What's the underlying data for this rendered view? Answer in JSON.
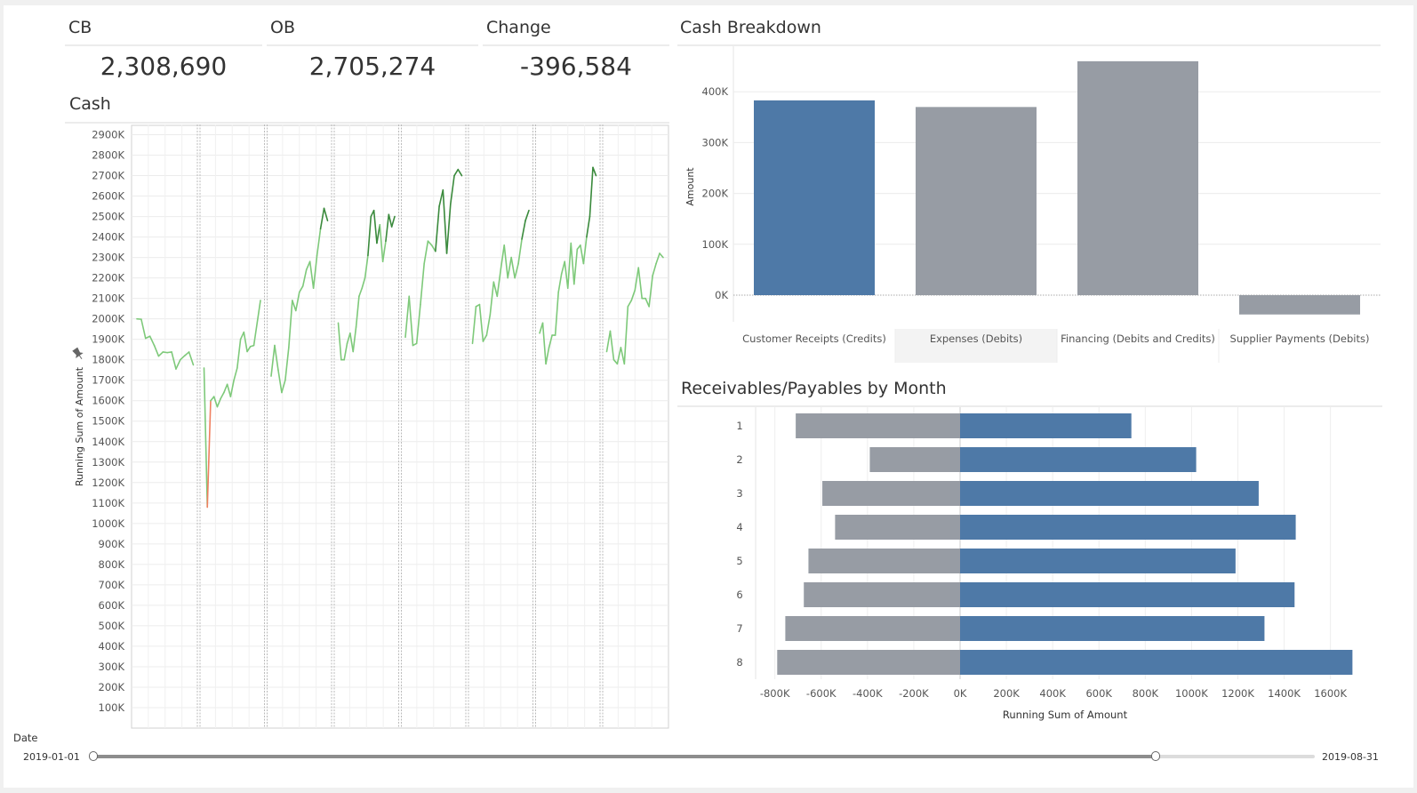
{
  "kpis": [
    {
      "label": "CB",
      "value": "2,308,690"
    },
    {
      "label": "OB",
      "value": "2,705,274"
    },
    {
      "label": "Change",
      "value": "-396,584"
    }
  ],
  "cash": {
    "title": "Cash",
    "ylabel": "Running Sum of Amount",
    "pin_icon": "pin-icon",
    "ticks": [
      "2900K",
      "2800K",
      "2700K",
      "2600K",
      "2500K",
      "2400K",
      "2300K",
      "2200K",
      "2100K",
      "2000K",
      "1900K",
      "1800K",
      "1700K",
      "1600K",
      "1500K",
      "1400K",
      "1300K",
      "1200K",
      "1100K",
      "1000K",
      "900K",
      "800K",
      "700K",
      "600K",
      "500K",
      "400K",
      "300K",
      "200K",
      "100K"
    ],
    "colors": {
      "high": "#3a8a3c",
      "mid": "#7ec97a",
      "low": "#f08060"
    }
  },
  "breakdown": {
    "title": "Cash Breakdown",
    "ylabel": "Amount",
    "ticks": [
      "400K",
      "300K",
      "200K",
      "100K",
      "0K"
    ]
  },
  "recpay": {
    "title": "Receivables/Payables by Month",
    "xlabel": "Running Sum of Amount",
    "xticks": [
      "-800K",
      "-600K",
      "-400K",
      "-200K",
      "0K",
      "200K",
      "400K",
      "600K",
      "800K",
      "1000K",
      "1200K",
      "1400K",
      "1600K"
    ]
  },
  "date_filter": {
    "label": "Date",
    "start": "2019-01-01",
    "end": "2019-08-31",
    "handle_position": 0.87
  },
  "chart_data": [
    {
      "type": "line",
      "title": "Cash",
      "ylabel": "Running Sum of Amount",
      "ylim": [
        0,
        2950
      ],
      "unit": "K",
      "series": [
        {
          "name": "1",
          "values": [
            2000,
            1998,
            1905,
            1915,
            1870,
            1818,
            1838,
            1835,
            1838,
            1755,
            1800,
            1820,
            1838,
            1775
          ]
        },
        {
          "name": "2",
          "values": [
            1760,
            1080,
            1600,
            1620,
            1570,
            1610,
            1640,
            1680,
            1620,
            1700,
            1760,
            1900,
            1935,
            1840,
            1865,
            1870,
            1980,
            2090
          ]
        },
        {
          "name": "3",
          "values": [
            1720,
            1870,
            1750,
            1640,
            1700,
            1860,
            2090,
            2040,
            2130,
            2160,
            2240,
            2280,
            2150,
            2310,
            2440,
            2540,
            2480
          ]
        },
        {
          "name": "4",
          "values": [
            1980,
            1800,
            1800,
            1880,
            1930,
            1840,
            1960,
            2110,
            2150,
            2200,
            2310,
            2500,
            2530,
            2370,
            2460,
            2280,
            2380,
            2510,
            2450,
            2500
          ]
        },
        {
          "name": "5",
          "values": [
            1910,
            2110,
            1870,
            1880,
            2070,
            2270,
            2380,
            2360,
            2330,
            2550,
            2630,
            2320,
            2560,
            2700,
            2730,
            2700
          ]
        },
        {
          "name": "6",
          "values": [
            1880,
            2060,
            2070,
            1890,
            1920,
            2020,
            2180,
            2110,
            2240,
            2360,
            2200,
            2300,
            2200,
            2270,
            2390,
            2480,
            2530
          ]
        },
        {
          "name": "7",
          "values": [
            1930,
            1980,
            1780,
            1860,
            1920,
            1920,
            2130,
            2220,
            2280,
            2150,
            2370,
            2170,
            2340,
            2360,
            2270,
            2400,
            2500,
            2740,
            2700
          ]
        },
        {
          "name": "8",
          "values": [
            1840,
            1940,
            1800,
            1780,
            1860,
            1780,
            2060,
            2090,
            2140,
            2250,
            2100,
            2100,
            2060,
            2210,
            2270,
            2320,
            2300
          ]
        }
      ]
    },
    {
      "type": "bar",
      "title": "Cash Breakdown",
      "ylabel": "Amount",
      "ylim": [
        -50,
        460
      ],
      "unit": "K",
      "categories": [
        "Customer Receipts (Credits)",
        "Expenses (Debits)",
        "Financing (Debits and Credits)",
        "Supplier Payments (Debits)"
      ],
      "values": [
        383,
        370,
        460,
        -38
      ],
      "colors": [
        "#4e79a7",
        "#979ca4",
        "#979ca4",
        "#979ca4"
      ]
    },
    {
      "type": "bar",
      "title": "Receivables/Payables by Month",
      "xlabel": "Running Sum of Amount",
      "xlim": [
        -870,
        1780
      ],
      "unit": "K",
      "categories": [
        "1",
        "2",
        "3",
        "4",
        "5",
        "6",
        "7",
        "8"
      ],
      "series": [
        {
          "values": [
            -710,
            -390,
            -595,
            -540,
            -655,
            -675,
            -755,
            -790
          ],
          "color": "#979ca4"
        },
        {
          "values": [
            740,
            1020,
            1290,
            1450,
            1190,
            1445,
            1315,
            1695
          ],
          "color": "#4e79a7"
        }
      ]
    }
  ]
}
